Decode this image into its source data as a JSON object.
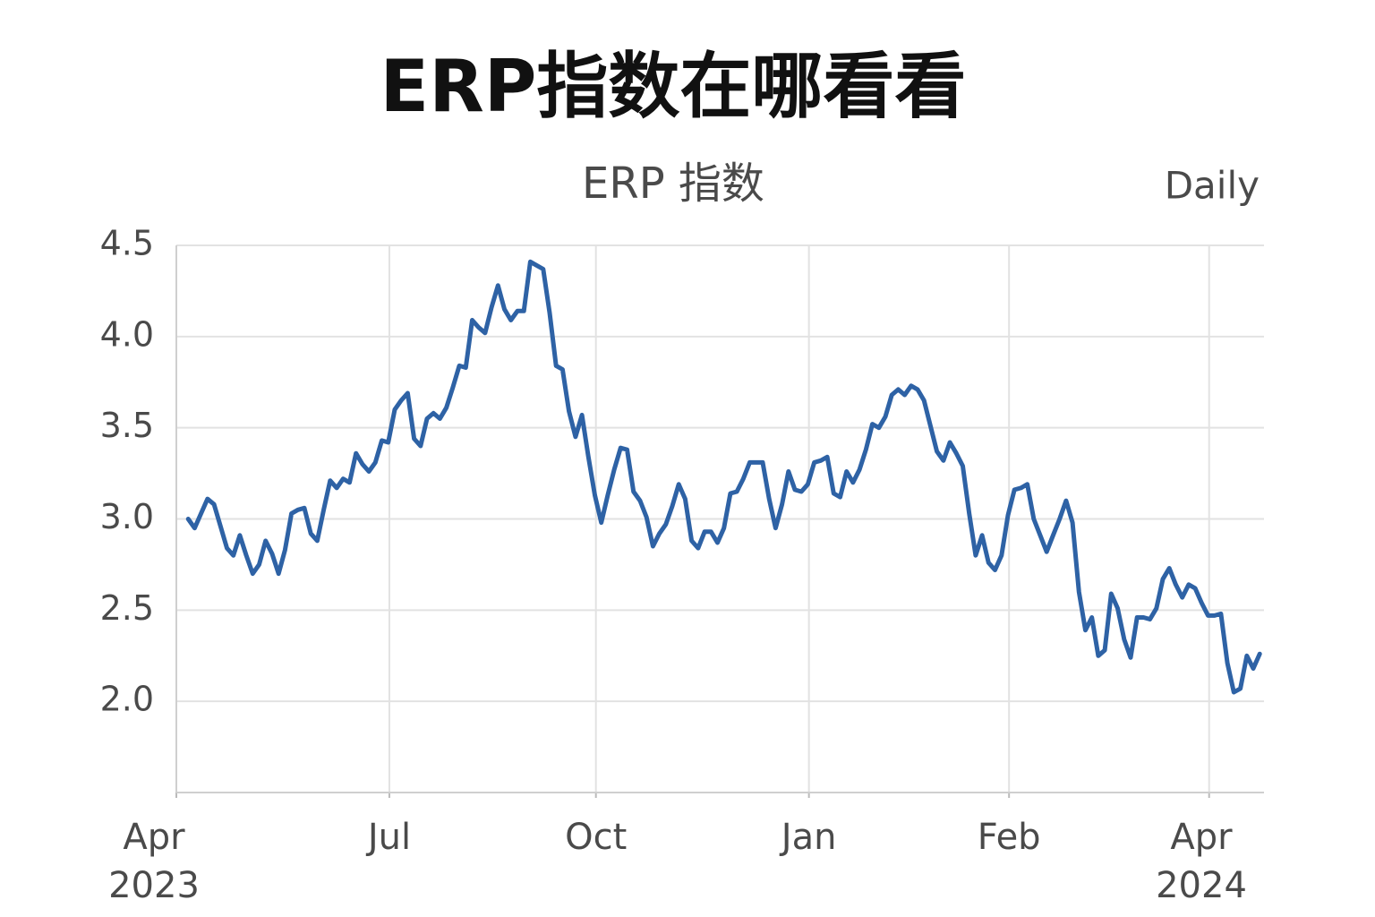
{
  "chart_data": {
    "type": "line",
    "title": "ERP指数在哪看看",
    "subtitle": "ERP 指数",
    "annotation": "Daily",
    "color": "#2e62a5",
    "grid": true,
    "ylim": [
      1.5,
      4.5
    ],
    "yticks": [
      {
        "value": 2,
        "label": "2.0"
      },
      2.5,
      {
        "value": 3,
        "label": "3.0"
      },
      3.5,
      {
        "value": 4,
        "label": "4.0"
      },
      4.5
    ],
    "xlim": [
      -1,
      167.5
    ],
    "xticks": [
      {
        "value": -1,
        "label": [
          "Apr",
          "2023"
        ]
      },
      {
        "value": 32,
        "label": [
          "Jul"
        ]
      },
      {
        "value": 64,
        "label": [
          "Oct"
        ]
      },
      {
        "value": 97,
        "label": [
          "Jan"
        ]
      },
      {
        "value": 128,
        "label": [
          "Feb"
        ]
      },
      {
        "value": 159,
        "label": [
          "Apr",
          "2024"
        ]
      }
    ],
    "values": [
      3.0,
      2.95,
      3.03,
      3.11,
      3.08,
      2.96,
      2.84,
      2.8,
      2.91,
      2.8,
      2.7,
      2.75,
      2.88,
      2.81,
      2.7,
      2.83,
      3.03,
      3.05,
      3.06,
      2.92,
      2.88,
      3.05,
      3.21,
      3.17,
      3.22,
      3.2,
      3.36,
      3.3,
      3.26,
      3.31,
      3.43,
      3.42,
      3.6,
      3.65,
      3.69,
      3.44,
      3.4,
      3.55,
      3.58,
      3.55,
      3.61,
      3.72,
      3.84,
      3.83,
      4.09,
      4.05,
      4.02,
      4.16,
      4.28,
      4.15,
      4.09,
      4.14,
      4.14,
      4.41,
      4.39,
      4.37,
      4.13,
      3.84,
      3.82,
      3.59,
      3.45,
      3.57,
      3.34,
      3.13,
      2.98,
      3.13,
      3.27,
      3.39,
      3.38,
      3.15,
      3.1,
      3.01,
      2.85,
      2.92,
      2.97,
      3.07,
      3.19,
      3.11,
      2.88,
      2.84,
      2.93,
      2.93,
      2.87,
      2.95,
      3.14,
      3.15,
      3.22,
      3.31,
      3.31,
      3.31,
      3.11,
      2.95,
      3.08,
      3.26,
      3.16,
      3.15,
      3.19,
      3.31,
      3.32,
      3.34,
      3.14,
      3.12,
      3.26,
      3.2,
      3.27,
      3.38,
      3.52,
      3.5,
      3.56,
      3.68,
      3.71,
      3.68,
      3.73,
      3.71,
      3.65,
      3.51,
      3.37,
      3.32,
      3.42,
      3.36,
      3.29,
      3.03,
      2.8,
      2.91,
      2.76,
      2.72,
      2.8,
      3.02,
      3.16,
      3.17,
      3.19,
      3.0,
      2.91,
      2.82,
      2.91,
      3.0,
      3.1,
      2.98,
      2.6,
      2.39,
      2.46,
      2.25,
      2.28,
      2.59,
      2.51,
      2.34,
      2.24,
      2.46,
      2.46,
      2.45,
      2.51,
      2.67,
      2.73,
      2.64,
      2.57,
      2.64,
      2.62,
      2.54,
      2.47,
      2.47,
      2.48,
      2.21,
      2.05,
      2.07,
      2.25,
      2.18,
      2.26
    ]
  }
}
